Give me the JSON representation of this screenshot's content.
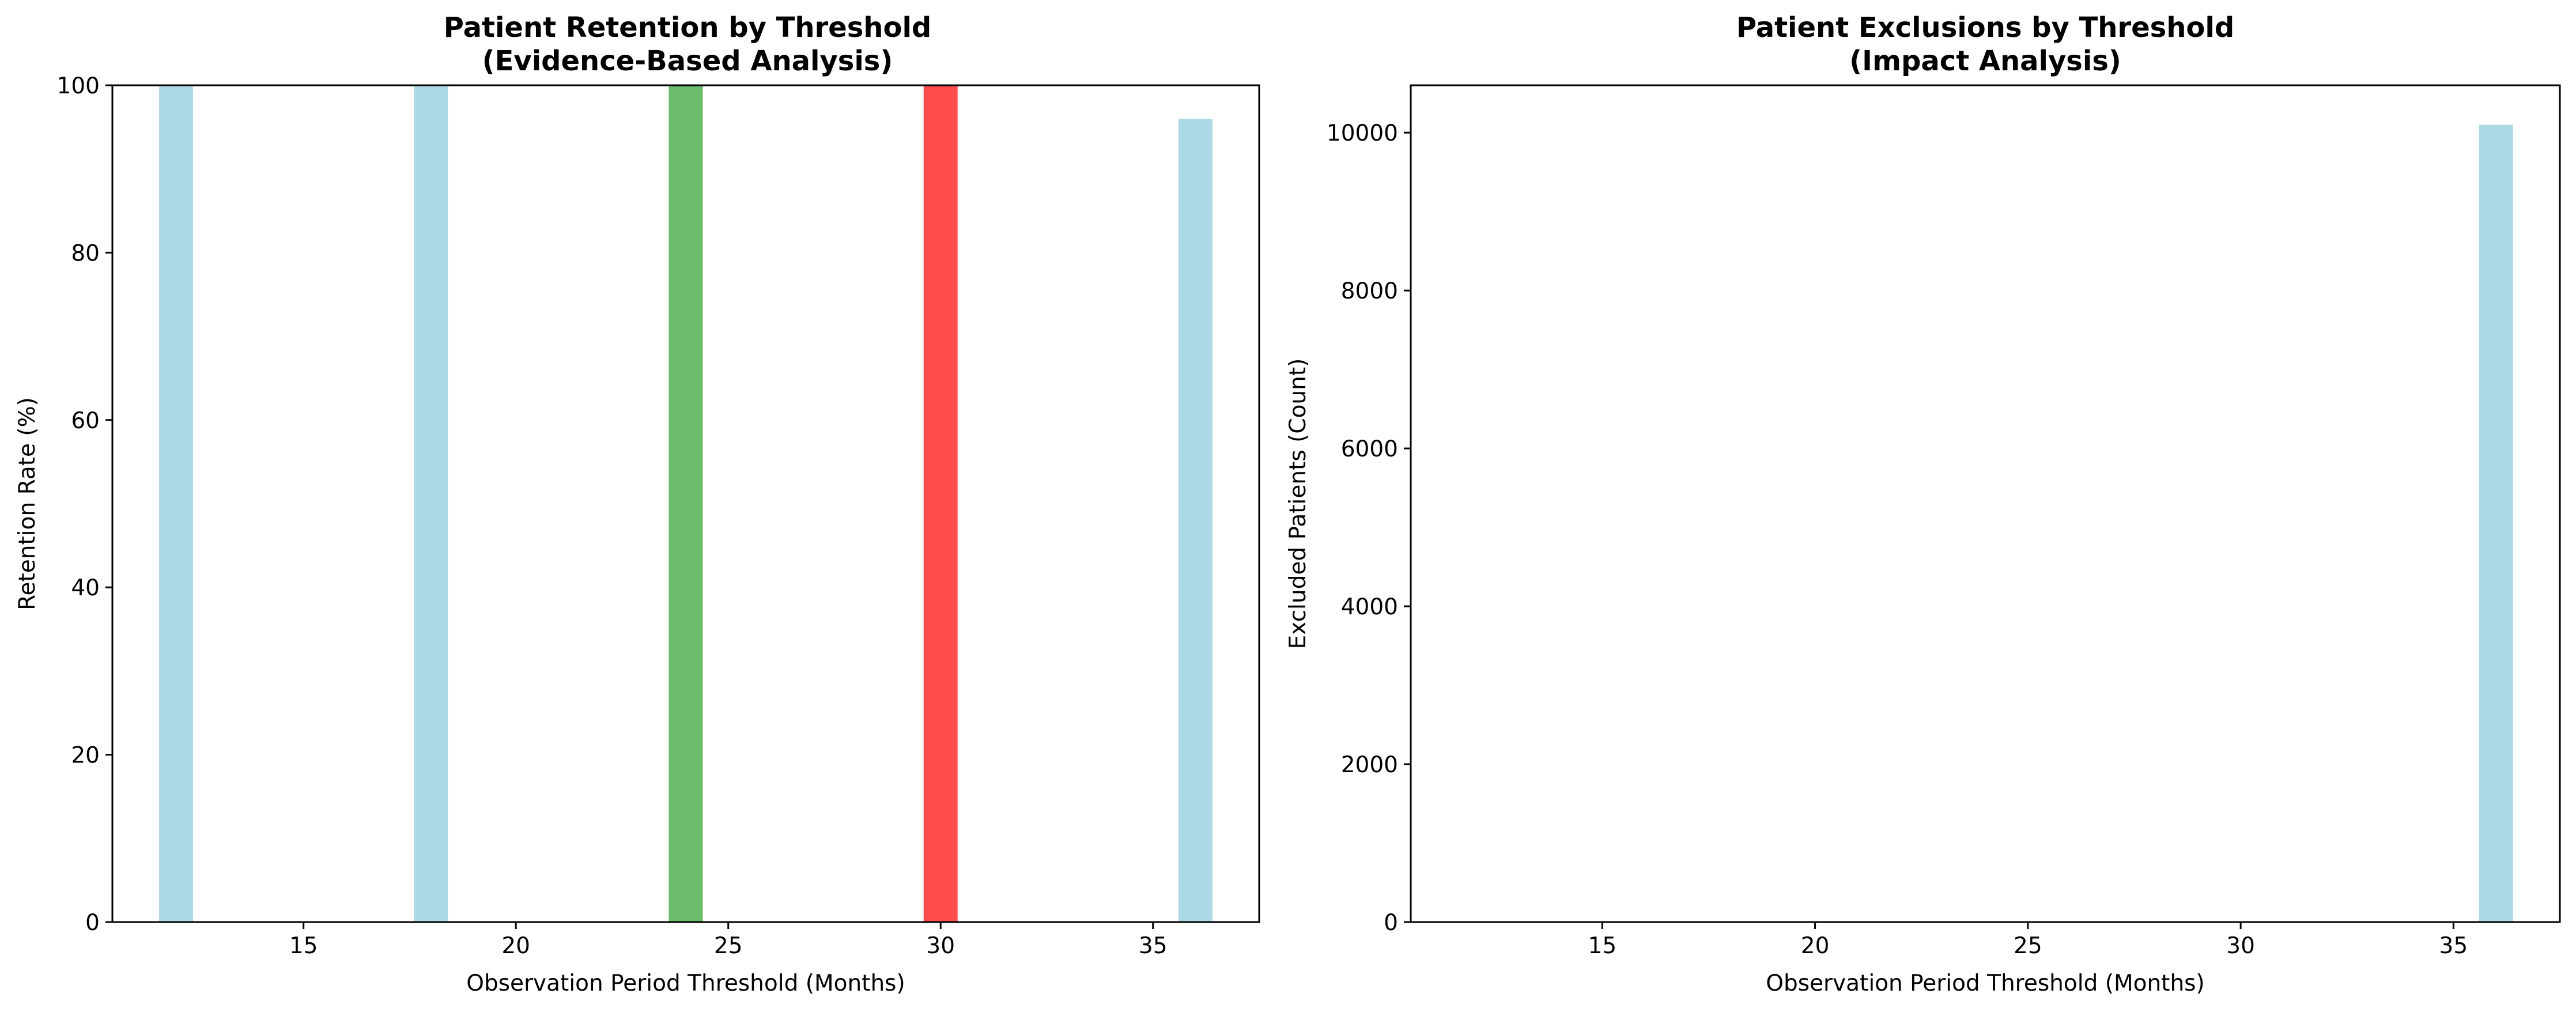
{
  "chart_data": [
    {
      "type": "bar",
      "title": "Patient Retention by Threshold",
      "subtitle": "(Evidence-Based Analysis)",
      "xlabel": "Observation Period Threshold (Months)",
      "ylabel": "Retention Rate (%)",
      "x": [
        12,
        18,
        24,
        30,
        36
      ],
      "values": [
        100,
        100,
        100,
        100,
        96
      ],
      "bar_colors": [
        "#add8e6",
        "#add8e6",
        "#2ca02c",
        "#ff0000",
        "#add8e6"
      ],
      "xlim": [
        10.5,
        37.5
      ],
      "ylim": [
        0,
        100
      ],
      "xticks": [
        15,
        20,
        25,
        30,
        35
      ],
      "yticks": [
        0,
        20,
        40,
        60,
        80,
        100
      ],
      "grid": false
    },
    {
      "type": "bar",
      "title": "Patient Exclusions by Threshold",
      "subtitle": "(Impact Analysis)",
      "xlabel": "Observation Period Threshold (Months)",
      "ylabel": "Excluded Patients (Count)",
      "x": [
        12,
        18,
        24,
        30,
        36
      ],
      "values": [
        0,
        0,
        0,
        0,
        10100
      ],
      "bar_colors": [
        "#add8e6",
        "#add8e6",
        "#add8e6",
        "#add8e6",
        "#add8e6"
      ],
      "xlim": [
        10.5,
        37.5
      ],
      "ylim": [
        0,
        10600
      ],
      "xticks": [
        15,
        20,
        25,
        30,
        35
      ],
      "yticks": [
        0,
        2000,
        4000,
        6000,
        8000,
        10000
      ],
      "grid": false
    }
  ]
}
